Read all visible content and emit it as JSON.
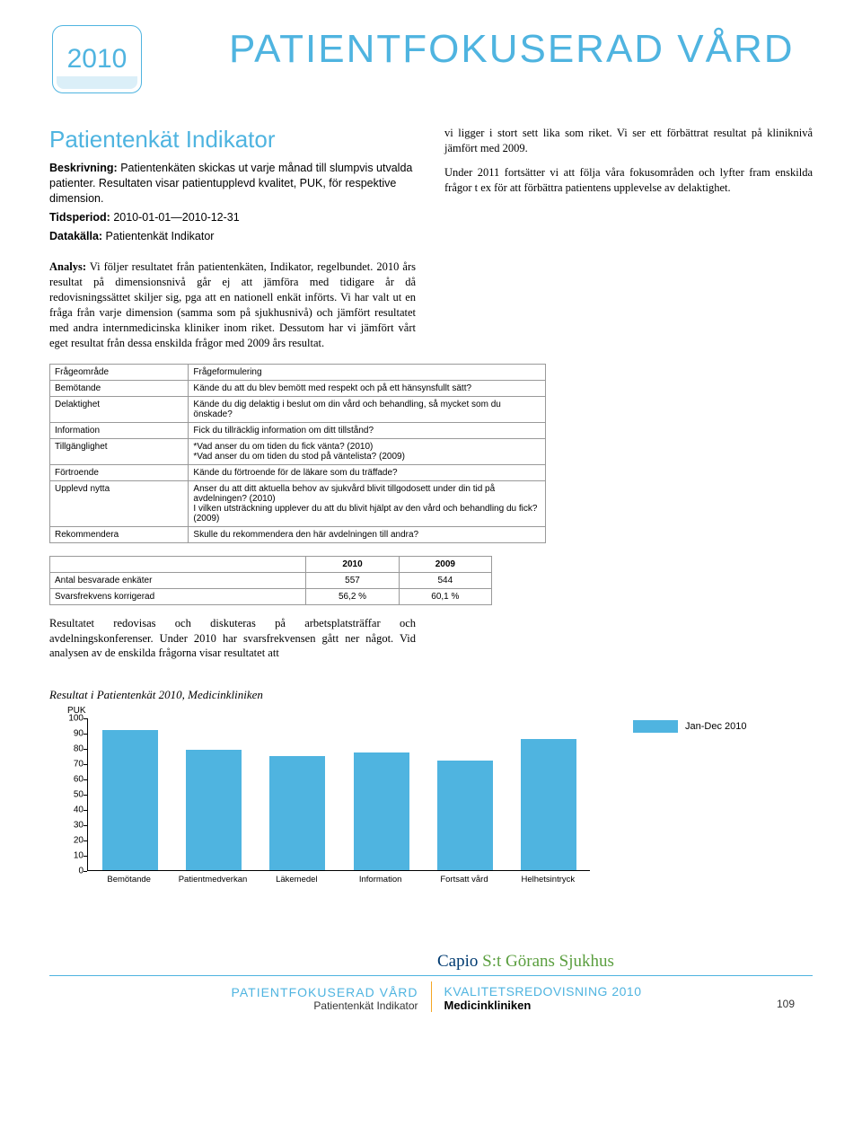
{
  "header": {
    "big_title": "PATIENTFOKUSERAD VÅRD",
    "year": "2010"
  },
  "section": {
    "title": "Patientenkät Indikator",
    "desc_label": "Beskrivning:",
    "desc": " Patientenkäten skickas ut varje månad till slumpvis utvalda patienter. Resultaten visar patientupplevd kvalitet, PUK, för respektive dimension.",
    "period_label": "Tidsperiod:",
    "period": " 2010-01-01—2010-12-31",
    "source_label": "Datakälla:",
    "source": " Patientenkät Indikator"
  },
  "right_col": {
    "p1": "vi ligger i stort sett lika som riket. Vi ser ett förbättrat resultat på kliniknivå jämfört med 2009.",
    "p2": "Under 2011 fortsätter vi att följa våra fokusområden och lyfter fram enskilda frågor t ex för att förbättra patientens upplevelse av delaktighet."
  },
  "analysis": {
    "label": "Analys:",
    "text": " Vi följer resultatet från patientenkäten, Indikator, regelbundet. 2010 års resultat på dimensionsnivå går ej att jämföra med tidigare år då redovisningssättet skiljer sig, pga att en nationell enkät införts. Vi har valt ut en fråga från varje dimension (samma som på sjukhusnivå) och jämfört resultatet med andra internmedicinska kliniker inom riket. Dessutom har vi jämfört vårt eget resultat från dessa enskilda frågor med 2009 års resultat."
  },
  "table1": {
    "headers": [
      "Frågeområde",
      "Frågeformulering"
    ],
    "rows": [
      [
        "Bemötande",
        "Kände du att du blev bemött med respekt och på ett hänsynsfullt sätt?"
      ],
      [
        "Delaktighet",
        "Kände du dig delaktig i beslut om din vård och behandling, så mycket som du önskade?"
      ],
      [
        "Information",
        "Fick du tillräcklig information om ditt tillstånd?"
      ],
      [
        "Tillgänglighet",
        "*Vad anser du om tiden du fick vänta? (2010)\n*Vad anser du om tiden du stod på väntelista? (2009)"
      ],
      [
        "Förtroende",
        "Kände du förtroende för de läkare som du träffade?"
      ],
      [
        "Upplevd nytta",
        "Anser du att ditt aktuella behov av sjukvård blivit tillgodosett under din tid på avdelningen? (2010)\nI vilken utsträckning upplever du att du blivit hjälpt av den vård och behandling du fick? (2009)"
      ],
      [
        "Rekommendera",
        "Skulle du rekommendera den här avdelningen till andra?"
      ]
    ]
  },
  "table2": {
    "col_years": [
      "2010",
      "2009"
    ],
    "rows": [
      {
        "label": "Antal besvarade enkäter",
        "v2010": "557",
        "v2009": "544"
      },
      {
        "label": "Svarsfrekvens korrigerad",
        "v2010": "56,2 %",
        "v2009": "60,1 %"
      }
    ]
  },
  "result_text": "Resultatet redovisas och diskuteras på arbetsplatsträffar och avdelningskonferenser. Under 2010 har svarsfrekvensen gått ner något. Vid analysen av de enskilda frågorna visar resultatet att",
  "chart": {
    "title": "Resultat i Patientenkät 2010, Medicinkliniken",
    "type": "bar",
    "ylabel": "PUK",
    "ylim": [
      0,
      100
    ],
    "ytick_step": 10,
    "categories": [
      "Bemötande",
      "Patientmedverkan",
      "Läkemedel",
      "Information",
      "Fortsatt vård",
      "Helhetsintryck"
    ],
    "values": [
      92,
      79,
      75,
      77,
      72,
      86
    ],
    "bar_color": "#4fb4e0",
    "background_color": "#ffffff",
    "legend_label": "Jan-Dec 2010"
  },
  "footer": {
    "left_l1": "PATIENTFOKUSERAD VÅRD",
    "left_l2": "Patientenkät Indikator",
    "brand_c1": "Capio ",
    "brand_c2": "S:t Görans Sjukhus",
    "k": "KVALITETSREDOVISNING 2010",
    "m": "Medicinkliniken",
    "page": "109"
  }
}
